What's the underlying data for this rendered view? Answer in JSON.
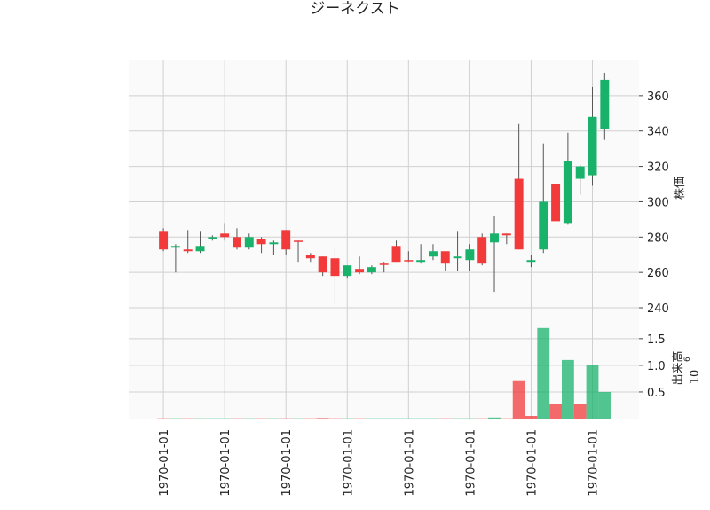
{
  "chart_data": {
    "type": "candlestick",
    "title": "ジーネクスト",
    "categories": [
      "1970-01-01",
      null,
      null,
      null,
      null,
      "1970-01-01",
      null,
      null,
      null,
      null,
      "1970-01-01",
      null,
      null,
      null,
      null,
      "1970-01-01",
      null,
      null,
      null,
      null,
      "1970-01-01",
      null,
      null,
      null,
      null,
      "1970-01-01",
      null,
      null,
      null,
      null,
      "1970-01-01",
      null,
      null,
      null,
      null,
      "1970-01-01",
      null
    ],
    "open": [
      283,
      274,
      273,
      272,
      279,
      282,
      280,
      274,
      279,
      276,
      284,
      278,
      270,
      269,
      268,
      258,
      262,
      260,
      265,
      275,
      267,
      266,
      269,
      272,
      268,
      267,
      280,
      277,
      282,
      313,
      266,
      273,
      310,
      288,
      313,
      315,
      341
    ],
    "high": [
      285,
      276,
      284,
      283,
      281,
      288,
      285,
      282,
      280,
      278,
      284,
      278,
      271,
      269,
      274,
      264,
      269,
      264,
      266,
      278,
      272,
      276,
      276,
      272,
      283,
      276,
      282,
      292,
      282,
      344,
      270,
      333,
      310,
      339,
      321,
      365,
      373
    ],
    "low": [
      272,
      260,
      271,
      271,
      278,
      278,
      273,
      273,
      271,
      270,
      270,
      266,
      266,
      258,
      242,
      257,
      259,
      259,
      260,
      266,
      266,
      265,
      267,
      261,
      261,
      261,
      264,
      249,
      276,
      273,
      263,
      271,
      289,
      287,
      304,
      309,
      335
    ],
    "close": [
      273,
      275,
      272,
      275,
      280,
      280,
      274,
      280,
      276,
      277,
      273,
      277.5,
      268,
      260,
      258,
      264,
      260,
      263,
      264.5,
      266,
      266.5,
      267,
      272,
      265,
      269,
      273,
      265,
      282,
      281,
      273,
      267,
      300,
      289,
      323,
      320,
      348,
      369
    ],
    "volume": [
      0.005,
      0.005,
      0.005,
      0.005,
      0.005,
      0.005,
      0.005,
      0.005,
      0.005,
      0.005,
      0.005,
      0.005,
      0.005,
      0.01,
      0.005,
      0.005,
      0.005,
      0.005,
      0.005,
      0.005,
      0.005,
      0.005,
      0.005,
      0.005,
      0.005,
      0.005,
      0.005,
      0.02,
      0.005,
      0.72,
      0.05,
      1.7,
      0.28,
      1.1,
      0.28,
      1.0,
      0.5
    ],
    "up_color": "#18b26b",
    "down_color": "#f23a3a",
    "xlim": [
      -2.83,
      38.8
    ],
    "ylim": [
      235.5,
      380
    ],
    "yticks": [
      240,
      260,
      280,
      300,
      320,
      340,
      360
    ],
    "ylabel": "株価",
    "volume_ylim": [
      0,
      1.93
    ],
    "volume_yticks": [
      0.5,
      {
        "value": 1,
        "label": "1.0"
      },
      1.5
    ],
    "volume_ylabel": "出来高",
    "volume_offset": {
      "base": "10",
      "exponent": "6"
    },
    "grid": true
  }
}
